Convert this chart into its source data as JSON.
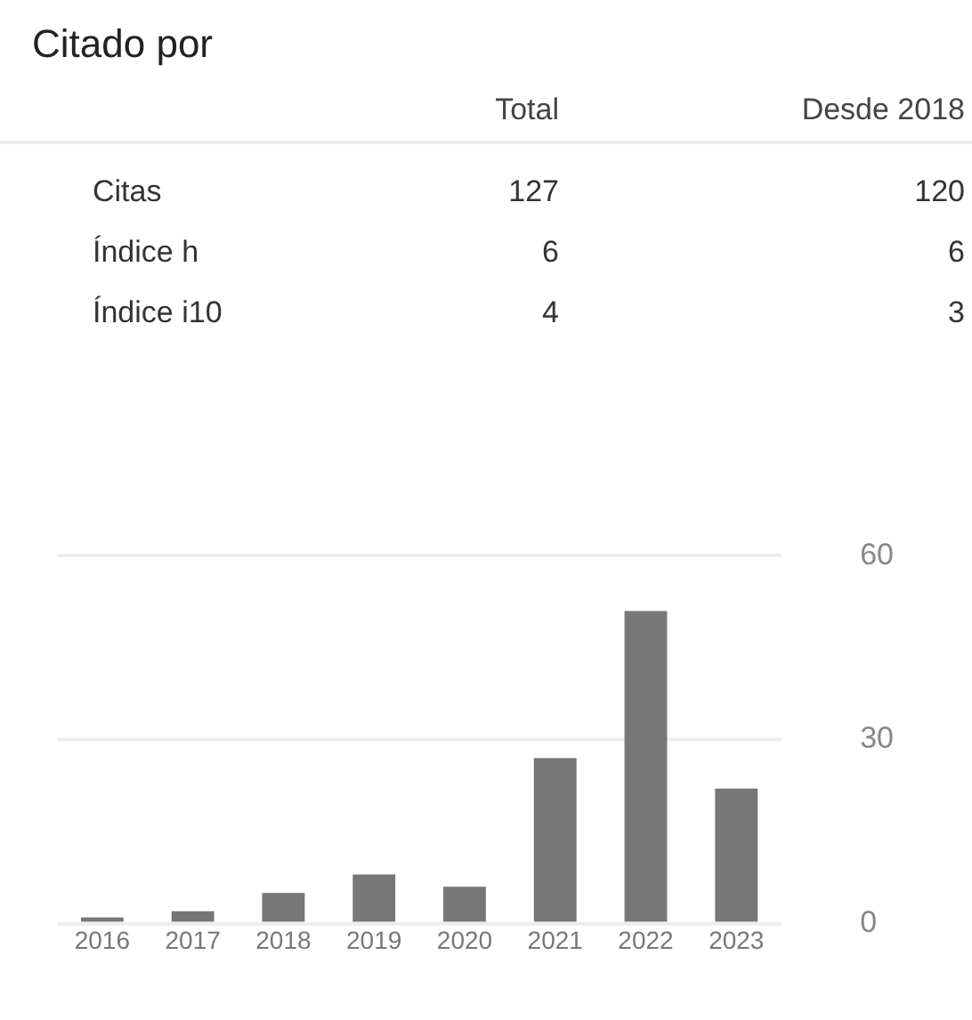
{
  "chart_data": [
    {
      "type": "other",
      "title": "Citado por",
      "data_labels": true,
      "categories": [
        "Citas",
        "Índice h",
        "Índice i10"
      ],
      "series": [
        {
          "name": "Total",
          "values": [
            127,
            6,
            4
          ]
        },
        {
          "name": "Desde 2018",
          "values": [
            120,
            6,
            3
          ]
        }
      ]
    },
    {
      "type": "bar",
      "categories": [
        "2016",
        "2017",
        "2018",
        "2019",
        "2020",
        "2021",
        "2022",
        "2023"
      ],
      "values": [
        1,
        2,
        5,
        8,
        6,
        27,
        51,
        22
      ],
      "color": "#777777",
      "ylim": [
        0,
        60
      ],
      "yticks": [
        0,
        30,
        60
      ],
      "grid": "y"
    }
  ]
}
